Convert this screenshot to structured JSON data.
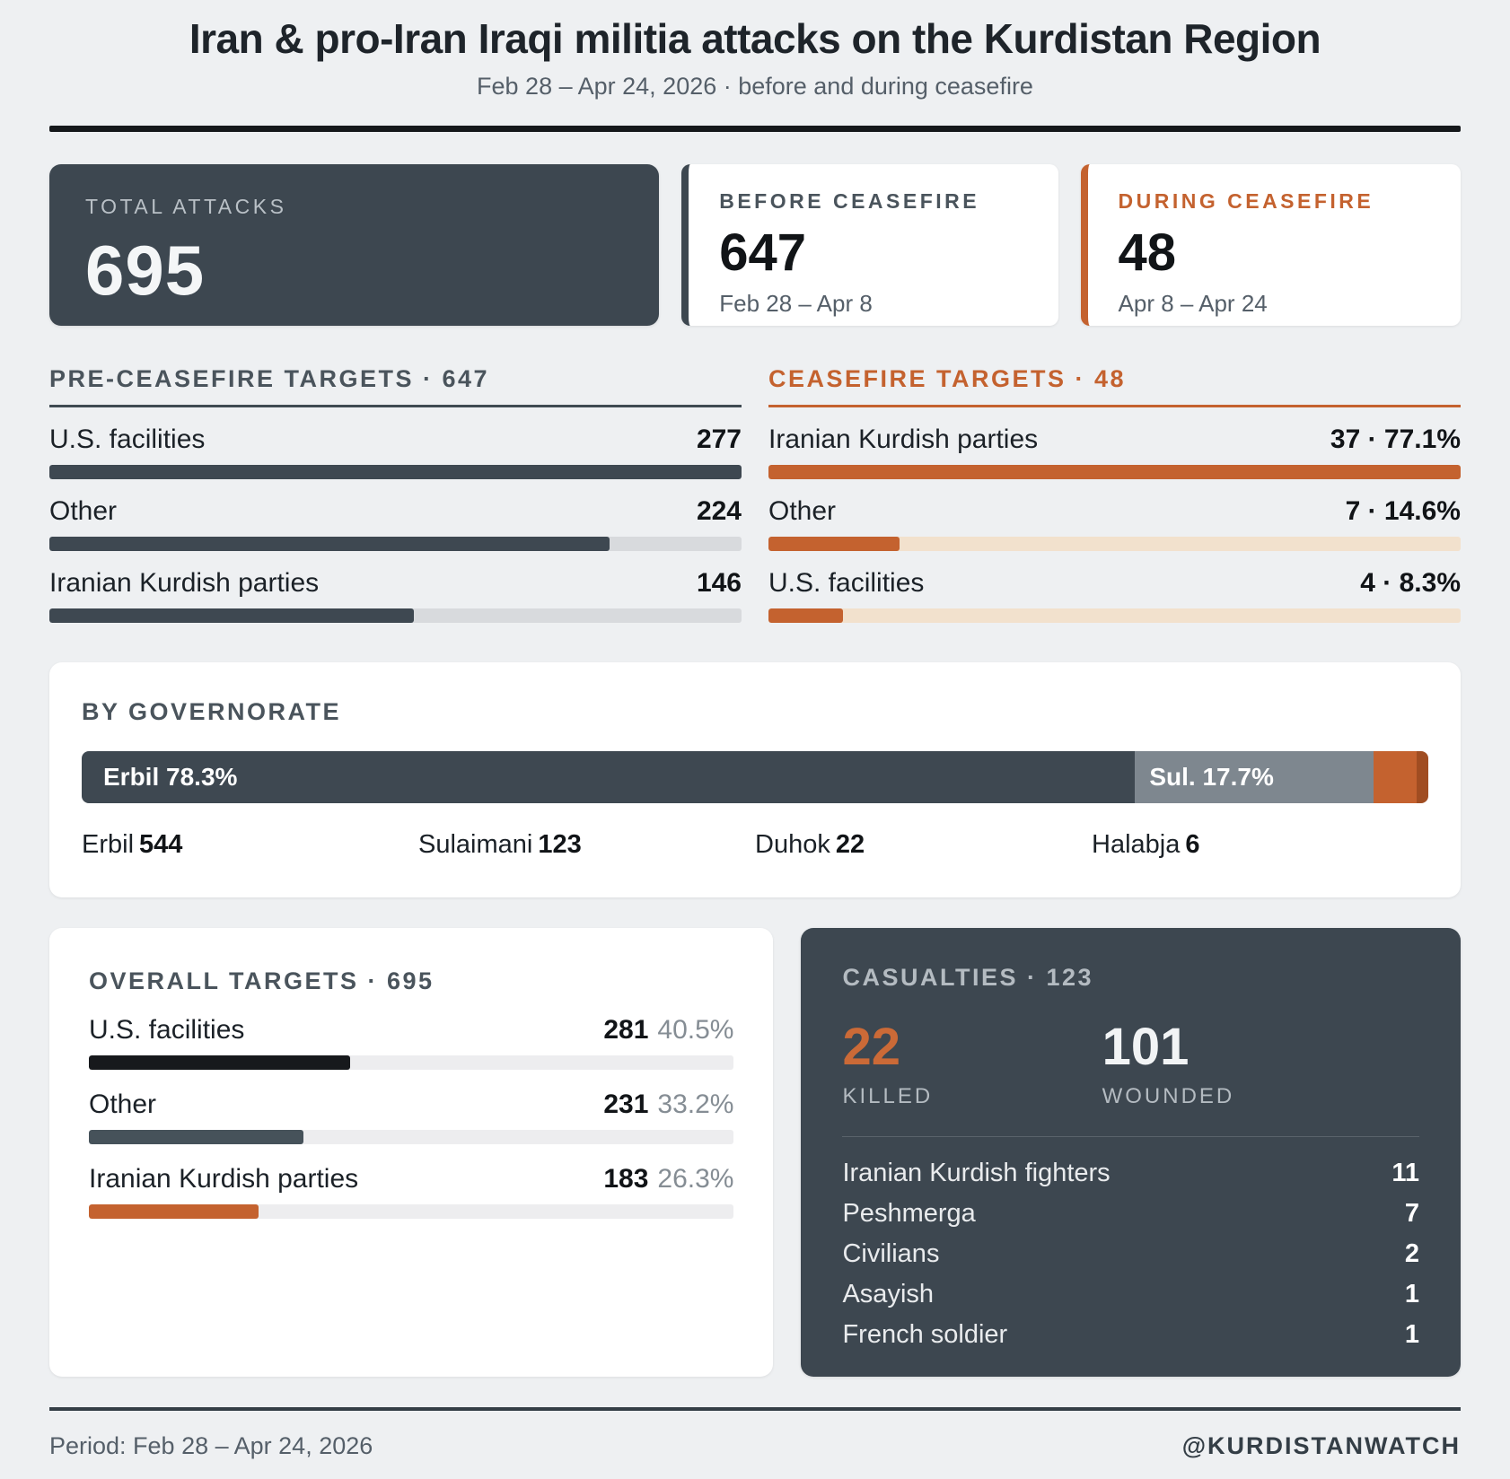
{
  "header": {
    "title": "Iran & pro-Iran Iraqi militia attacks on the Kurdistan Region",
    "subtitle": "Feb 28 – Apr 24, 2026 · before and during ceasefire"
  },
  "stats": {
    "total": {
      "label": "TOTAL ATTACKS",
      "value": "695"
    },
    "before": {
      "label": "BEFORE CEASEFIRE",
      "value": "647",
      "period": "Feb 28 – Apr 8"
    },
    "during": {
      "label": "DURING CEASEFIRE",
      "value": "48",
      "period": "Apr 8 – Apr 24"
    }
  },
  "pre_targets": {
    "heading": "PRE-CEASEFIRE TARGETS · 647",
    "rows": [
      {
        "label": "U.S. facilities",
        "value": "277",
        "width_pct": 100
      },
      {
        "label": "Other",
        "value": "224",
        "width_pct": 80.9
      },
      {
        "label": "Iranian Kurdish parties",
        "value": "146",
        "width_pct": 52.7
      }
    ]
  },
  "cease_targets": {
    "heading": "CEASEFIRE TARGETS · 48",
    "rows": [
      {
        "label": "Iranian Kurdish parties",
        "value": "37 · 77.1%",
        "width_pct": 100
      },
      {
        "label": "Other",
        "value": "7 · 14.6%",
        "width_pct": 18.9
      },
      {
        "label": "U.S. facilities",
        "value": "4 · 8.3%",
        "width_pct": 10.8
      }
    ]
  },
  "governorate": {
    "heading": "BY GOVERNORATE",
    "segments": [
      {
        "label": "Erbil 78.3%",
        "width_pct": 78.3,
        "color": "#3e4851"
      },
      {
        "label": "Sul. 17.7%",
        "width_pct": 17.7,
        "color": "#7e878f"
      },
      {
        "label": "",
        "width_pct": 3.2,
        "color": "#c4622f"
      },
      {
        "label": "",
        "width_pct": 0.9,
        "color": "#a04d22"
      }
    ],
    "legend": [
      {
        "name": "Erbil",
        "value": "544"
      },
      {
        "name": "Sulaimani",
        "value": "123"
      },
      {
        "name": "Duhok",
        "value": "22"
      },
      {
        "name": "Halabja",
        "value": "6"
      }
    ]
  },
  "overall": {
    "heading": "OVERALL TARGETS · 695",
    "rows": [
      {
        "label": "U.S. facilities",
        "value": "281",
        "pct": "40.5%",
        "width_pct": 40.5,
        "color": "#17191c"
      },
      {
        "label": "Other",
        "value": "231",
        "pct": "33.2%",
        "width_pct": 33.2,
        "color": "#46525a"
      },
      {
        "label": "Iranian Kurdish parties",
        "value": "183",
        "pct": "26.3%",
        "width_pct": 26.3,
        "color": "#c4622f"
      }
    ]
  },
  "casualties": {
    "heading": "CASUALTIES · 123",
    "killed": {
      "value": "22",
      "label": "KILLED"
    },
    "wounded": {
      "value": "101",
      "label": "WOUNDED"
    },
    "list": [
      {
        "label": "Iranian Kurdish fighters",
        "value": "11"
      },
      {
        "label": "Peshmerga",
        "value": "7"
      },
      {
        "label": "Civilians",
        "value": "2"
      },
      {
        "label": "Asayish",
        "value": "1"
      },
      {
        "label": "French soldier",
        "value": "1"
      }
    ]
  },
  "footer": {
    "period": "Period: Feb 28 – Apr 24, 2026",
    "credit": "@KURDISTANWATCH"
  },
  "accent_colors": {
    "slate": "#3d4750",
    "orange": "#c4622f",
    "dark_orange": "#a04d22",
    "sul_gray": "#7e878f",
    "background": "#eef0f2"
  },
  "chart_data": [
    {
      "type": "bar",
      "title": "PRE-CEASEFIRE TARGETS · 647",
      "categories": [
        "U.S. facilities",
        "Other",
        "Iranian Kurdish parties"
      ],
      "values": [
        277,
        224,
        146
      ],
      "total": 647,
      "orientation": "horizontal",
      "scale": "bars scaled to max value 277"
    },
    {
      "type": "bar",
      "title": "CEASEFIRE TARGETS · 48",
      "categories": [
        "Iranian Kurdish parties",
        "Other",
        "U.S. facilities"
      ],
      "values": [
        37,
        7,
        4
      ],
      "percents": [
        77.1,
        14.6,
        8.3
      ],
      "total": 48,
      "orientation": "horizontal",
      "scale": "bars scaled to max value 37"
    },
    {
      "type": "bar",
      "subtype": "stacked-single",
      "title": "BY GOVERNORATE",
      "categories": [
        "Erbil",
        "Sulaimani",
        "Duhok",
        "Halabja"
      ],
      "values": [
        544,
        123,
        22,
        6
      ],
      "percents": [
        78.3,
        17.7,
        3.2,
        0.9
      ],
      "labels_shown": [
        "Erbil 78.3%",
        "Sul. 17.7%"
      ],
      "orientation": "horizontal"
    },
    {
      "type": "bar",
      "title": "OVERALL TARGETS · 695",
      "categories": [
        "U.S. facilities",
        "Other",
        "Iranian Kurdish parties"
      ],
      "values": [
        281,
        231,
        183
      ],
      "percents": [
        40.5,
        33.2,
        26.3
      ],
      "total": 695,
      "orientation": "horizontal",
      "scale": "bars sized as percent of total"
    },
    {
      "type": "table",
      "title": "CASUALTIES · 123",
      "summary": {
        "killed": 22,
        "wounded": 101
      },
      "categories": [
        "Iranian Kurdish fighters",
        "Peshmerga",
        "Civilians",
        "Asayish",
        "French soldier"
      ],
      "values": [
        11,
        7,
        2,
        1,
        1
      ]
    }
  ]
}
